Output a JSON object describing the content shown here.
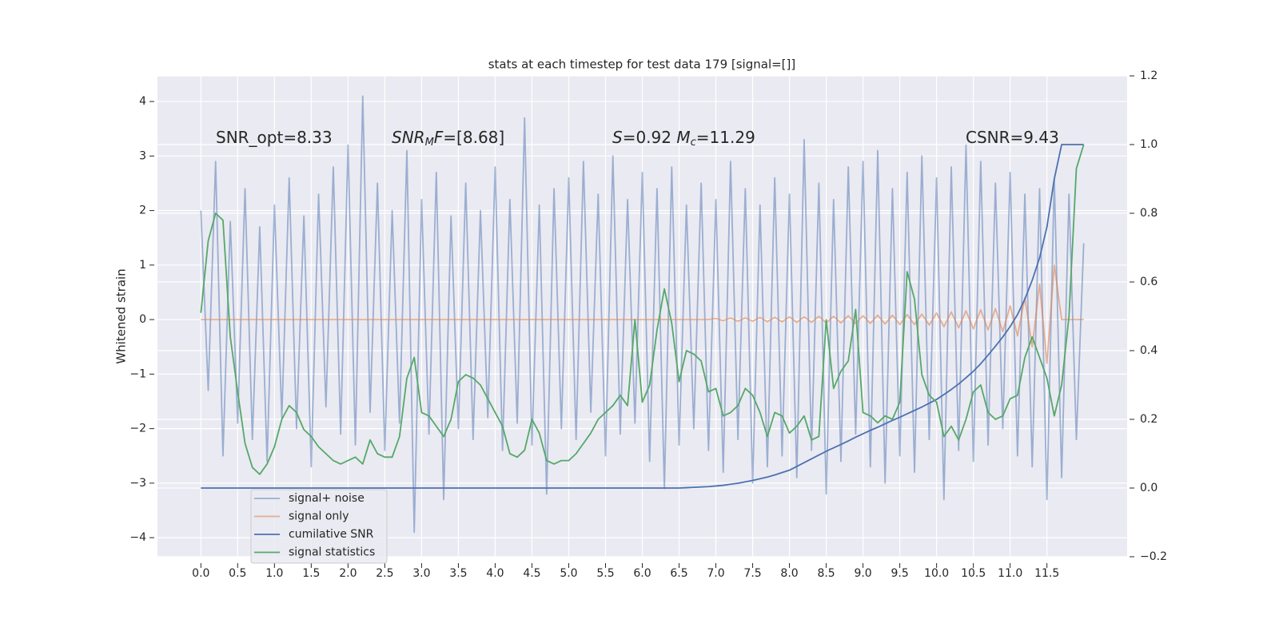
{
  "chart_data": {
    "type": "line",
    "title": "stats at each timestep for test data 179 [signal=[]]",
    "ylabel": "Whitened strain",
    "annotations": [
      [
        {
          "text": "SNR_opt=8.33"
        }
      ],
      [
        {
          "text": "SNR",
          "italic": true
        },
        {
          "text": "M",
          "italic": true,
          "sub": true
        },
        {
          "text": "F",
          "italic": true
        },
        {
          "text": "=[8.68]"
        }
      ],
      [
        {
          "text": "S",
          "italic": true
        },
        {
          "text": "=0.92   "
        },
        {
          "text": "M",
          "italic": true
        },
        {
          "text": "c",
          "italic": true,
          "sub": true
        },
        {
          "text": "=11.29"
        }
      ],
      [
        {
          "text": "CSNR=9.43"
        }
      ]
    ],
    "legend": "lower left",
    "grid": true,
    "xlim": [
      -0.59,
      12.59
    ],
    "ylim": [
      -4.35,
      4.47
    ],
    "y2lim": [
      -0.2,
      1.2
    ],
    "xticks": [
      {
        "value": 0,
        "label": "0.0"
      },
      0.5,
      {
        "value": 1,
        "label": "1.0"
      },
      1.5,
      {
        "value": 2,
        "label": "2.0"
      },
      2.5,
      {
        "value": 3,
        "label": "3.0"
      },
      3.5,
      {
        "value": 4,
        "label": "4.0"
      },
      4.5,
      {
        "value": 5,
        "label": "5.0"
      },
      5.5,
      {
        "value": 6,
        "label": "6.0"
      },
      6.5,
      {
        "value": 7,
        "label": "7.0"
      },
      7.5,
      {
        "value": 8,
        "label": "8.0"
      },
      8.5,
      {
        "value": 9,
        "label": "9.0"
      },
      9.5,
      {
        "value": 10,
        "label": "10.0"
      },
      10.5,
      {
        "value": 11,
        "label": "11.0"
      },
      11.5
    ],
    "yticks": [
      {
        "value": -4,
        "label": "−4"
      },
      {
        "value": -3,
        "label": "−3"
      },
      {
        "value": -2,
        "label": "−2"
      },
      {
        "value": -1,
        "label": "−1"
      },
      0,
      1,
      2,
      3,
      4
    ],
    "y2ticks": [
      {
        "value": -0.2,
        "label": "−0.2"
      },
      {
        "value": 0,
        "label": "0.0"
      },
      0.2,
      0.4,
      0.6,
      0.8,
      {
        "value": 1,
        "label": "1.0"
      },
      1.2
    ],
    "x": [
      0,
      0.1,
      0.2,
      0.3,
      0.4,
      0.5,
      0.6,
      0.7,
      0.8,
      0.9,
      1,
      1.1,
      1.2,
      1.3,
      1.4,
      1.5,
      1.6,
      1.7,
      1.8,
      1.9,
      2,
      2.1,
      2.2,
      2.3,
      2.4,
      2.5,
      2.6,
      2.7,
      2.8,
      2.9,
      3,
      3.1,
      3.2,
      3.3,
      3.4,
      3.5,
      3.6,
      3.7,
      3.8,
      3.9,
      4,
      4.1,
      4.2,
      4.3,
      4.4,
      4.5,
      4.6,
      4.7,
      4.8,
      4.9,
      5,
      5.1,
      5.2,
      5.3,
      5.4,
      5.5,
      5.6,
      5.7,
      5.8,
      5.9,
      6,
      6.1,
      6.2,
      6.3,
      6.4,
      6.5,
      6.6,
      6.7,
      6.8,
      6.9,
      7,
      7.1,
      7.2,
      7.3,
      7.4,
      7.5,
      7.6,
      7.7,
      7.8,
      7.9,
      8,
      8.1,
      8.2,
      8.3,
      8.4,
      8.5,
      8.6,
      8.7,
      8.8,
      8.9,
      9,
      9.1,
      9.2,
      9.3,
      9.4,
      9.5,
      9.6,
      9.7,
      9.8,
      9.9,
      10,
      10.1,
      10.2,
      10.3,
      10.4,
      10.5,
      10.6,
      10.7,
      10.8,
      10.9,
      11,
      11.1,
      11.2,
      11.3,
      11.4,
      11.5,
      11.6,
      11.7,
      11.8,
      11.9,
      12
    ],
    "series": [
      {
        "name": "signal+ noise",
        "color": "#4c72b0",
        "opacity": 0.5,
        "values": [
          2.0,
          -1.3,
          2.9,
          -2.5,
          1.8,
          -1.9,
          2.4,
          -2.2,
          1.7,
          -2.6,
          2.1,
          -1.8,
          2.6,
          -2.0,
          1.9,
          -2.7,
          2.3,
          -1.6,
          2.8,
          -2.1,
          3.2,
          -2.3,
          4.1,
          -1.7,
          2.5,
          -2.4,
          2.0,
          -1.9,
          3.1,
          -3.9,
          2.2,
          -2.1,
          2.7,
          -3.3,
          1.9,
          -2.0,
          2.5,
          -2.2,
          2.0,
          -1.8,
          2.8,
          -2.4,
          2.2,
          -1.9,
          3.7,
          -2.3,
          2.1,
          -3.2,
          2.4,
          -2.0,
          2.6,
          -2.2,
          2.9,
          -1.7,
          2.3,
          -2.5,
          3.0,
          -2.1,
          2.2,
          -1.9,
          2.7,
          -2.6,
          2.4,
          -3.1,
          2.8,
          -2.3,
          2.1,
          -2.0,
          2.5,
          -2.4,
          2.2,
          -2.8,
          2.9,
          -2.2,
          2.4,
          -3.0,
          2.1,
          -2.7,
          2.6,
          -2.5,
          2.3,
          -2.9,
          3.3,
          -2.4,
          2.5,
          -3.2,
          2.2,
          -2.6,
          2.8,
          -2.1,
          2.9,
          -2.7,
          3.1,
          -3.0,
          2.4,
          -2.5,
          2.7,
          -2.8,
          3.0,
          -2.2,
          2.6,
          -3.3,
          2.8,
          -2.4,
          3.2,
          -2.6,
          2.9,
          -2.3,
          2.5,
          -2.0,
          2.7,
          -2.5,
          2.3,
          -2.7,
          2.4,
          -3.3,
          2.6,
          -2.9,
          2.3,
          -2.2,
          1.4
        ]
      },
      {
        "name": "signal only",
        "color": "#dd8452",
        "opacity": 0.6,
        "values": [
          0,
          0,
          0,
          0,
          0,
          0,
          0,
          0,
          0,
          0,
          0,
          0,
          0,
          0,
          0,
          0,
          0,
          0,
          0,
          0,
          0,
          0,
          0,
          0,
          0,
          0,
          0,
          0,
          0,
          0,
          0,
          0,
          0,
          0,
          0,
          0,
          0,
          0,
          0,
          0,
          0,
          0,
          0,
          0,
          0,
          0,
          0,
          0,
          0,
          0,
          0,
          0,
          0,
          0,
          0,
          0,
          0,
          0,
          0,
          0,
          0,
          0,
          0,
          0,
          0,
          0,
          0,
          0,
          0,
          0,
          0.02,
          -0.02,
          0.03,
          -0.03,
          0.03,
          -0.03,
          0.04,
          -0.04,
          0.04,
          -0.04,
          0.05,
          -0.05,
          0.05,
          -0.05,
          0.06,
          -0.06,
          0.06,
          -0.06,
          0.07,
          -0.07,
          0.07,
          -0.07,
          0.08,
          -0.08,
          0.08,
          -0.09,
          0.09,
          -0.09,
          0.1,
          -0.1,
          0.12,
          -0.13,
          0.14,
          -0.15,
          0.16,
          -0.17,
          0.18,
          -0.19,
          0.2,
          -0.22,
          0.25,
          -0.3,
          0.4,
          -0.5,
          0.65,
          -0.8,
          1.0,
          0,
          0,
          0,
          0
        ]
      },
      {
        "name": "cumilative SNR",
        "color": "#4c72b0",
        "axis": "y2",
        "values": [
          0,
          0,
          0,
          0,
          0,
          0,
          0,
          0,
          0,
          0,
          0,
          0,
          0,
          0,
          0,
          0,
          0,
          0,
          0,
          0,
          0,
          0,
          0,
          0,
          0,
          0,
          0,
          0,
          0,
          0,
          0,
          0,
          0,
          0,
          0,
          0,
          0,
          0,
          0,
          0,
          0,
          0,
          0,
          0,
          0,
          0,
          0,
          0,
          0,
          0,
          0,
          0,
          0,
          0,
          0,
          0,
          0,
          0,
          0,
          0,
          0,
          0,
          0,
          0,
          0,
          0,
          0.001,
          0.002,
          0.003,
          0.004,
          0.006,
          0.008,
          0.011,
          0.014,
          0.018,
          0.022,
          0.027,
          0.032,
          0.038,
          0.045,
          0.052,
          0.063,
          0.074,
          0.085,
          0.096,
          0.107,
          0.117,
          0.127,
          0.137,
          0.148,
          0.158,
          0.168,
          0.177,
          0.187,
          0.197,
          0.206,
          0.216,
          0.226,
          0.236,
          0.247,
          0.258,
          0.272,
          0.287,
          0.303,
          0.321,
          0.34,
          0.362,
          0.387,
          0.413,
          0.44,
          0.47,
          0.505,
          0.55,
          0.605,
          0.67,
          0.76,
          0.9,
          1.0,
          1.0,
          1.0,
          1.0
        ]
      },
      {
        "name": "signal statistics",
        "color": "#55a868",
        "axis": "y2",
        "values": [
          0.51,
          0.72,
          0.8,
          0.78,
          0.44,
          0.28,
          0.13,
          0.06,
          0.04,
          0.07,
          0.12,
          0.2,
          0.24,
          0.22,
          0.17,
          0.15,
          0.12,
          0.1,
          0.08,
          0.07,
          0.08,
          0.09,
          0.07,
          0.14,
          0.1,
          0.09,
          0.09,
          0.15,
          0.32,
          0.38,
          0.22,
          0.21,
          0.18,
          0.15,
          0.2,
          0.31,
          0.33,
          0.32,
          0.3,
          0.26,
          0.22,
          0.18,
          0.1,
          0.09,
          0.11,
          0.2,
          0.16,
          0.08,
          0.07,
          0.08,
          0.08,
          0.1,
          0.13,
          0.16,
          0.2,
          0.22,
          0.24,
          0.27,
          0.24,
          0.49,
          0.25,
          0.3,
          0.46,
          0.58,
          0.48,
          0.31,
          0.4,
          0.39,
          0.37,
          0.28,
          0.29,
          0.21,
          0.22,
          0.24,
          0.29,
          0.27,
          0.22,
          0.15,
          0.22,
          0.21,
          0.16,
          0.18,
          0.21,
          0.14,
          0.15,
          0.49,
          0.29,
          0.34,
          0.37,
          0.52,
          0.22,
          0.21,
          0.19,
          0.21,
          0.2,
          0.25,
          0.63,
          0.55,
          0.33,
          0.27,
          0.25,
          0.15,
          0.18,
          0.14,
          0.2,
          0.28,
          0.3,
          0.22,
          0.2,
          0.21,
          0.26,
          0.27,
          0.38,
          0.44,
          0.38,
          0.32,
          0.21,
          0.3,
          0.5,
          0.93,
          1.0
        ]
      }
    ]
  }
}
